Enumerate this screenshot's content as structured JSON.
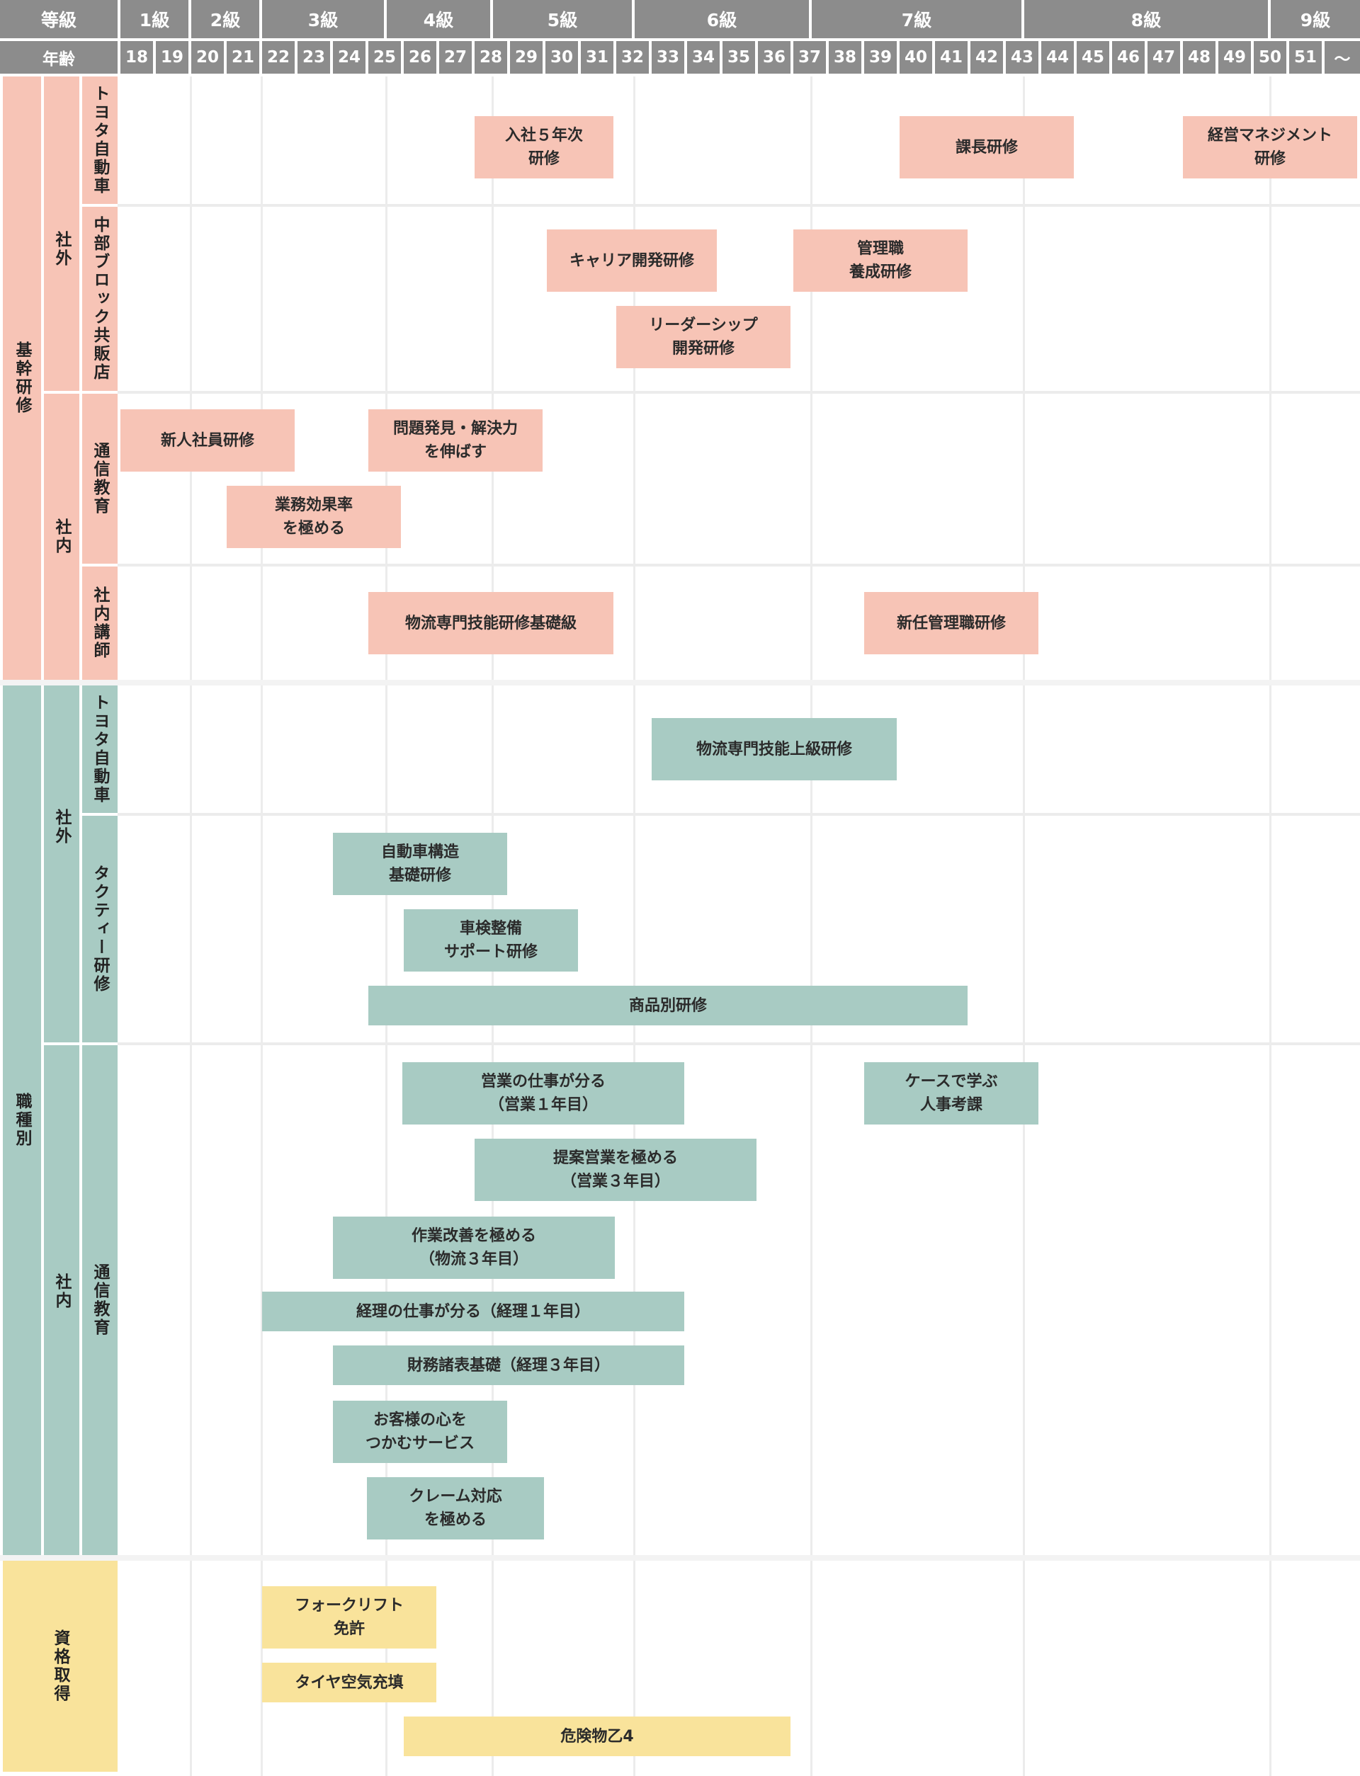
{
  "colors": {
    "header": "#8c8c8c",
    "kikan": "#f7c4b6",
    "shokushu": "#a8cbc3",
    "shikaku": "#f9e39b"
  },
  "header": {
    "grade_label": "等級",
    "age_label": "年齢",
    "grades": [
      "1級",
      "2級",
      "3級",
      "4級",
      "5級",
      "6級",
      "7級",
      "8級",
      "9級"
    ],
    "ages": [
      "18",
      "19",
      "20",
      "21",
      "22",
      "23",
      "24",
      "25",
      "26",
      "27",
      "28",
      "29",
      "30",
      "31",
      "32",
      "33",
      "34",
      "35",
      "36",
      "37",
      "38",
      "39",
      "40",
      "41",
      "42",
      "43",
      "44",
      "45",
      "46",
      "47",
      "48",
      "49",
      "50",
      "51",
      "〜"
    ]
  },
  "categories": {
    "kikan": "基幹研修",
    "shokushu": "職種別",
    "shikaku": "資格取得"
  },
  "subcategories": {
    "kikan_shagai": "社外",
    "kikan_shanai": "社内",
    "shokushu_shagai": "社外",
    "shokushu_shanai": "社内"
  },
  "providers": {
    "kikan_toyota": "トヨタ自動車",
    "kikan_chubu": "中部ブロック共販店",
    "kikan_tsushin": "通信教育",
    "kikan_koshi": "社内講師",
    "shokushu_toyota": "トヨタ自動車",
    "shokushu_tacty": "タクティー研修",
    "shokushu_tsushin": "通信教育"
  },
  "courses": {
    "c01": "入社５年次\n研修",
    "c02": "課長研修",
    "c03": "経営マネジメント\n研修",
    "c04": "キャリア開発研修",
    "c05": "管理職\n養成研修",
    "c06": "リーダーシップ\n開発研修",
    "c07": "新人社員研修",
    "c08": "問題発見・解決力\nを伸ばす",
    "c09": "業務効果率\nを極める",
    "c10": "物流専門技能研修基礎級",
    "c11": "新任管理職研修",
    "c12": "物流専門技能上級研修",
    "c13": "自動車構造\n基礎研修",
    "c14": "車検整備\nサポート研修",
    "c15": "商品別研修",
    "c16": "営業の仕事が分る\n（営業１年目）",
    "c17": "ケースで学ぶ\n人事考課",
    "c18": "提案営業を極める\n（営業３年目）",
    "c19": "作業改善を極める\n（物流３年目）",
    "c20": "経理の仕事が分る（経理１年目）",
    "c21": "財務諸表基礎（経理３年目）",
    "c22": "お客様の心を\nつかむサービス",
    "c23": "クレーム対応\nを極める",
    "c24": "フォークリフト\n免許",
    "c25": "タイヤ空気充填",
    "c26": "危険物乙4"
  }
}
